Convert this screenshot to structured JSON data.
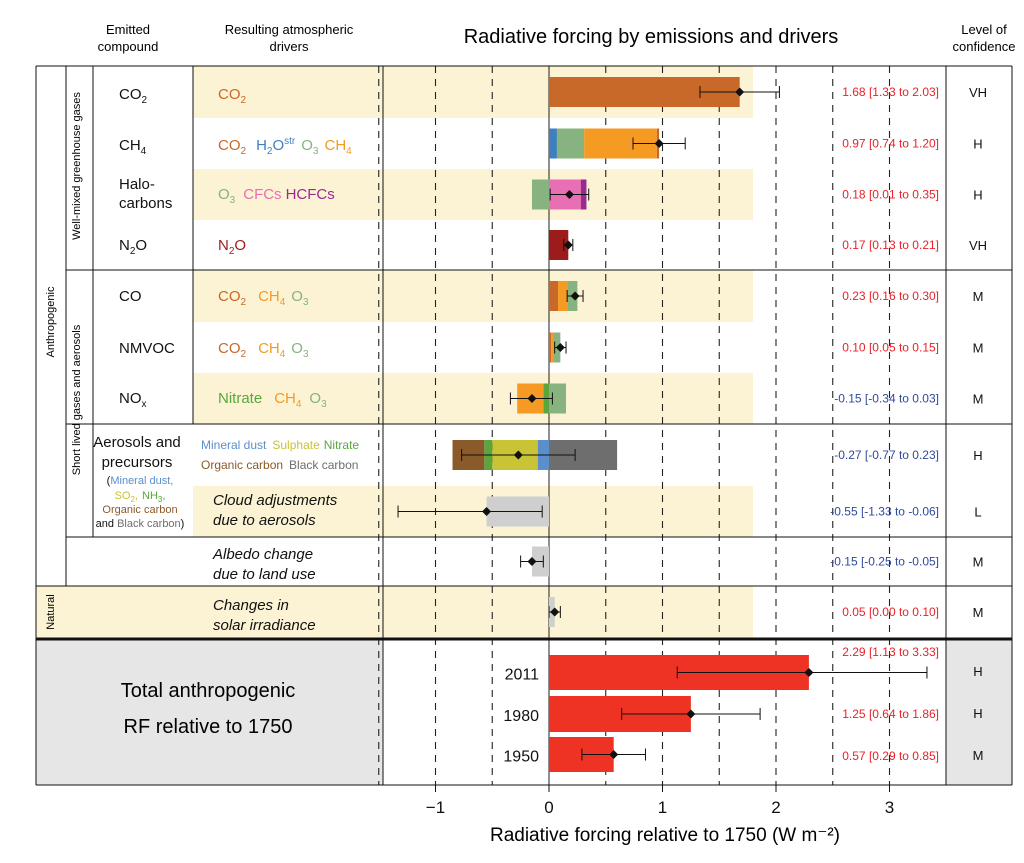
{
  "header": {
    "emitted_compound": [
      "Emitted",
      "compound"
    ],
    "resulting_drivers": [
      "Resulting atmospheric",
      "drivers"
    ],
    "title": "Radiative forcing by emissions and drivers",
    "level_of_confidence": [
      "Level of",
      "confidence"
    ]
  },
  "side_labels": {
    "anthropogenic": "Anthropogenic",
    "natural": "Natural",
    "wmghg": "Well-mixed greenhouse gases",
    "short_lived": "Short lived gases and aerosols"
  },
  "compound_labels": {
    "co2": "CO2",
    "ch4": "CH4",
    "halocarbons": [
      "Halo-",
      "carbons"
    ],
    "n2o": "N2O",
    "co": "CO",
    "nmvoc": "NMVOC",
    "nox": "NOx",
    "aerosols": [
      "Aerosols and",
      "precursors"
    ],
    "aerosol_detail": {
      "open": "(",
      "mineral_dust": "Mineral dust,",
      "so2": "SO2,",
      "nh3": "NH3,",
      "organic_carbon": "Organic carbon",
      "and": "and",
      "black_carbon": "Black carbon",
      "close": ")"
    },
    "cloud": [
      "Cloud adjustments",
      "due to aerosols"
    ],
    "albedo": [
      "Albedo change",
      "due to land use"
    ],
    "solar": [
      "Changes in",
      "solar irradiance"
    ]
  },
  "drivers": {
    "co2": "CO2",
    "h2o": "H2O",
    "h2o_sup": "str",
    "o3": "O3",
    "ch4": "CH4",
    "cfcs": "CFCs",
    "hcfcs": "HCFCs",
    "n2o": "N2O",
    "nitrate": "Nitrate",
    "mineral_dust": "Mineral dust",
    "sulphate": "Sulphate",
    "organic_carbon": "Organic carbon",
    "black_carbon": "Black carbon"
  },
  "colors": {
    "co2": "#c8692a",
    "h2o": "#3f7fbf",
    "o3": "#86b37f",
    "ch4": "#f59a22",
    "cfcs": "#e96fb4",
    "hcfcs": "#9b2a8f",
    "n2o": "#9c1c1c",
    "nitrate": "#5aa63c",
    "mineral_dust": "#5b8fcb",
    "sulphate": "#c9c336",
    "organic_carbon": "#8a5a2a",
    "black_carbon": "#6e6e6e",
    "aerosol_gray": "#cfcfcf",
    "total": "#ee3224",
    "positive_text": "#e8232a",
    "negative_text": "#2f4a9c",
    "row_band": "#fbf3d4",
    "total_band": "#e6e6e6"
  },
  "totals_label": [
    "Total anthropogenic",
    "RF relative to 1750"
  ],
  "chart_data": {
    "type": "bar",
    "title": "Radiative forcing by emissions and drivers",
    "xlabel": "Radiative forcing relative to 1750 (W m⁻²)",
    "xlim": [
      -1.5,
      3.5
    ],
    "xticks": [
      -1,
      0,
      1,
      2,
      3
    ],
    "xtick_labels": [
      "−1",
      "0",
      "1",
      "2",
      "3"
    ],
    "dashed_gridlines": [
      -1.5,
      -1,
      -0.5,
      0.5,
      1,
      1.5,
      2,
      2.5,
      3
    ],
    "rows": [
      {
        "id": "co2",
        "value": 1.68,
        "low": 1.33,
        "high": 2.03,
        "label": "1.68 [1.33 to 2.03]",
        "confidence": "VH",
        "components": [
          {
            "driver": "CO2",
            "value": 1.68
          }
        ]
      },
      {
        "id": "ch4",
        "value": 0.97,
        "low": 0.74,
        "high": 1.2,
        "label": "0.97 [0.74 to 1.20]",
        "confidence": "H",
        "components": [
          {
            "driver": "H2Ostr",
            "value": 0.07
          },
          {
            "driver": "O3",
            "value": 0.24
          },
          {
            "driver": "CH4",
            "value": 0.64
          },
          {
            "driver": "CO2",
            "value": 0.02
          }
        ]
      },
      {
        "id": "halocarbons",
        "value": 0.18,
        "low": 0.01,
        "high": 0.35,
        "label": "0.18 [0.01 to 0.35]",
        "confidence": "H",
        "components": [
          {
            "driver": "O3",
            "value": -0.15
          },
          {
            "driver": "CFCs",
            "value": 0.28
          },
          {
            "driver": "HCFCs",
            "value": 0.05
          }
        ]
      },
      {
        "id": "n2o",
        "value": 0.17,
        "low": 0.13,
        "high": 0.21,
        "label": "0.17 [0.13 to 0.21]",
        "confidence": "VH",
        "components": [
          {
            "driver": "N2O",
            "value": 0.17
          }
        ]
      },
      {
        "id": "co",
        "value": 0.23,
        "low": 0.16,
        "high": 0.3,
        "label": "0.23 [0.16 to 0.30]",
        "confidence": "M",
        "components": [
          {
            "driver": "CO2",
            "value": 0.08
          },
          {
            "driver": "CH4",
            "value": 0.08
          },
          {
            "driver": "O3",
            "value": 0.09
          }
        ]
      },
      {
        "id": "nmvoc",
        "value": 0.1,
        "low": 0.05,
        "high": 0.15,
        "label": "0.10 [0.05 to 0.15]",
        "confidence": "M",
        "components": [
          {
            "driver": "CO2",
            "value": 0.02
          },
          {
            "driver": "CH4",
            "value": 0.02
          },
          {
            "driver": "O3",
            "value": 0.06
          }
        ]
      },
      {
        "id": "nox",
        "value": -0.15,
        "low": -0.34,
        "high": 0.03,
        "label": "-0.15 [-0.34 to 0.03]",
        "confidence": "M",
        "components": [
          {
            "driver": "Nitrate",
            "value": -0.05
          },
          {
            "driver": "CH4",
            "value": -0.23
          },
          {
            "driver": "O3",
            "value": 0.15
          }
        ]
      },
      {
        "id": "aerosols",
        "value": -0.27,
        "low": -0.77,
        "high": 0.23,
        "label": "-0.27 [-0.77 to 0.23]",
        "confidence": "H",
        "components": [
          {
            "driver": "Mineral dust",
            "value": -0.1
          },
          {
            "driver": "Sulphate",
            "value": -0.4
          },
          {
            "driver": "Nitrate",
            "value": -0.07
          },
          {
            "driver": "Organic carbon",
            "value": -0.28
          },
          {
            "driver": "Black carbon",
            "value": 0.6
          }
        ]
      },
      {
        "id": "cloud",
        "value": -0.55,
        "low": -1.33,
        "high": -0.06,
        "label": "-0.55 [-1.33 to -0.06]",
        "confidence": "L",
        "components": [
          {
            "driver": "Cloud adjustments",
            "value": -0.55
          }
        ]
      },
      {
        "id": "albedo",
        "value": -0.15,
        "low": -0.25,
        "high": -0.05,
        "label": "-0.15 [-0.25 to -0.05]",
        "confidence": "M",
        "components": [
          {
            "driver": "Albedo",
            "value": -0.15
          }
        ]
      },
      {
        "id": "solar",
        "value": 0.05,
        "low": 0.0,
        "high": 0.1,
        "label": "0.05 [0.00 to 0.10]",
        "confidence": "M",
        "components": [
          {
            "driver": "Solar",
            "value": 0.05
          }
        ]
      }
    ],
    "totals": [
      {
        "year": "2011",
        "value": 2.29,
        "low": 1.13,
        "high": 3.33,
        "label": "2.29 [1.13 to 3.33]",
        "confidence": "H"
      },
      {
        "year": "1980",
        "value": 1.25,
        "low": 0.64,
        "high": 1.86,
        "label": "1.25 [0.64 to 1.86]",
        "confidence": "H"
      },
      {
        "year": "1950",
        "value": 0.57,
        "low": 0.29,
        "high": 0.85,
        "label": "0.57 [0.29 to 0.85]",
        "confidence": "M"
      }
    ]
  }
}
